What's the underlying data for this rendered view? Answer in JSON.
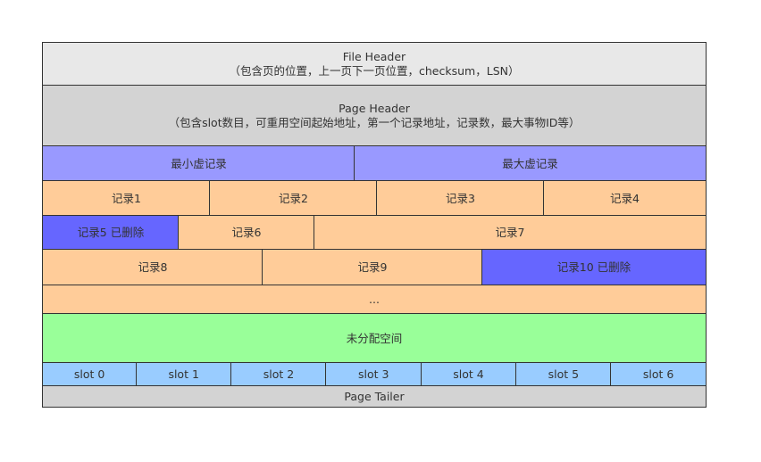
{
  "file_header": {
    "title": "File Header",
    "desc": "（包含页的位置，上一页下一页位置，checksum，LSN）"
  },
  "page_header": {
    "title": "Page Header",
    "desc": "（包含slot数目，可重用空间起始地址，第一个记录地址，记录数，最大事物ID等）"
  },
  "infimum": "最小虚记录",
  "supremum": "最大虚记录",
  "records": {
    "r1": "记录1",
    "r2": "记录2",
    "r3": "记录3",
    "r4": "记录4",
    "r5": "记录5 已删除",
    "r6": "记录6",
    "r7": "记录7",
    "r8": "记录8",
    "r9": "记录9",
    "r10": "记录10 已删除"
  },
  "ellipsis": "...",
  "free_space": "未分配空间",
  "slots": [
    "slot 0",
    "slot 1",
    "slot 2",
    "slot 3",
    "slot 4",
    "slot 5",
    "slot 6"
  ],
  "page_tailer": "Page Tailer",
  "colors": {
    "file_header": "#e8e8e8",
    "page_header": "#d3d3d3",
    "virtual_record": "#9999ff",
    "record": "#ffcc99",
    "deleted_record": "#6666ff",
    "free_space": "#99ff99",
    "slot": "#99ccff"
  }
}
